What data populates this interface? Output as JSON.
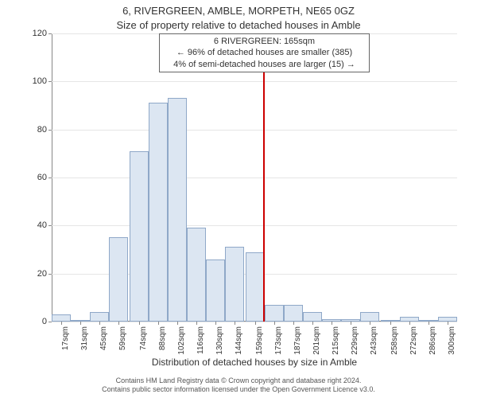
{
  "titles": {
    "line1": "6, RIVERGREEN, AMBLE, MORPETH, NE65 0GZ",
    "line2": "Size of property relative to detached houses in Amble"
  },
  "annotation": {
    "line1": "6 RIVERGREEN: 165sqm",
    "line2": "← 96% of detached houses are smaller (385)",
    "line3": "4% of semi-detached houses are larger (15) →"
  },
  "chart": {
    "type": "histogram",
    "y_label": "Number of detached properties",
    "x_label": "Distribution of detached houses by size in Amble",
    "y_ticks": [
      0,
      20,
      40,
      60,
      80,
      100,
      120
    ],
    "y_max": 120,
    "x_min": 10,
    "x_max": 307,
    "x_ticks": [
      17,
      31,
      45,
      59,
      74,
      88,
      102,
      116,
      130,
      144,
      159,
      173,
      187,
      201,
      215,
      229,
      243,
      258,
      272,
      286,
      300
    ],
    "x_tick_suffix": "sqm",
    "bar_fill": "#dce6f2",
    "bar_stroke": "#8fa8c8",
    "bar_width_data": 14,
    "bars": [
      {
        "x": 17,
        "h": 3
      },
      {
        "x": 31,
        "h": 0
      },
      {
        "x": 45,
        "h": 4
      },
      {
        "x": 59,
        "h": 35
      },
      {
        "x": 74,
        "h": 71
      },
      {
        "x": 88,
        "h": 91
      },
      {
        "x": 102,
        "h": 93
      },
      {
        "x": 116,
        "h": 39
      },
      {
        "x": 130,
        "h": 26
      },
      {
        "x": 144,
        "h": 31
      },
      {
        "x": 159,
        "h": 29
      },
      {
        "x": 173,
        "h": 7
      },
      {
        "x": 187,
        "h": 7
      },
      {
        "x": 201,
        "h": 4
      },
      {
        "x": 215,
        "h": 1
      },
      {
        "x": 229,
        "h": 1
      },
      {
        "x": 243,
        "h": 4
      },
      {
        "x": 258,
        "h": 0
      },
      {
        "x": 272,
        "h": 2
      },
      {
        "x": 286,
        "h": 0
      },
      {
        "x": 300,
        "h": 2
      }
    ],
    "reference_line_x": 165,
    "reference_line_color": "#cc0000",
    "grid_color": "#e5e5e5",
    "axis_color": "#888888",
    "background": "#ffffff",
    "tick_fontsize": 11,
    "label_fontsize": 12,
    "title_fontsize": 13
  },
  "footer": {
    "line1": "Contains HM Land Registry data © Crown copyright and database right 2024.",
    "line2": "Contains public sector information licensed under the Open Government Licence v3.0."
  }
}
